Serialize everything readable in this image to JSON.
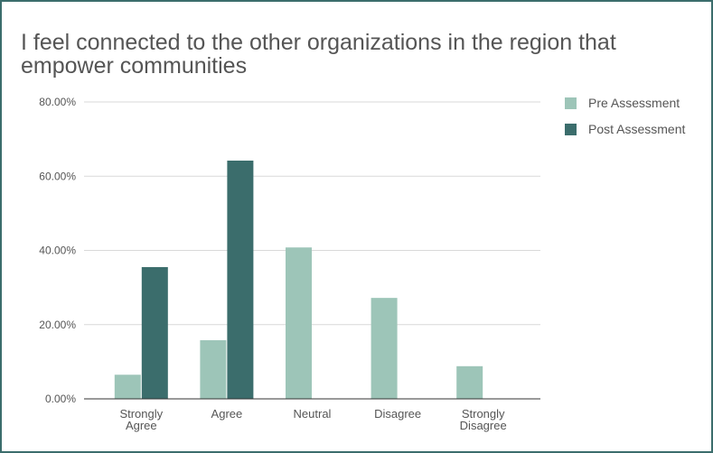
{
  "chart_data": {
    "type": "bar",
    "title": "I feel connected to the other organizations in the region that empower communities",
    "categories": [
      "Strongly Agree",
      "Agree",
      "Neutral",
      "Disagree",
      "Strongly Disagree"
    ],
    "series": [
      {
        "name": "Pre Assessment",
        "color": "#9dc5b8",
        "values": [
          6.5,
          15.8,
          40.8,
          27.2,
          8.8
        ]
      },
      {
        "name": "Post Assessment",
        "color": "#3b6d6c",
        "values": [
          35.5,
          64.2,
          0,
          0,
          0
        ]
      }
    ],
    "ylim": [
      0,
      80
    ],
    "yticks": [
      "0.00%",
      "20.00%",
      "40.00%",
      "60.00%",
      "80.00%"
    ],
    "ytick_values": [
      0,
      20,
      40,
      60,
      80
    ],
    "xlabel": "",
    "ylabel": "",
    "grid": true,
    "legend_position": "top-right",
    "unit_suffix": "%"
  }
}
